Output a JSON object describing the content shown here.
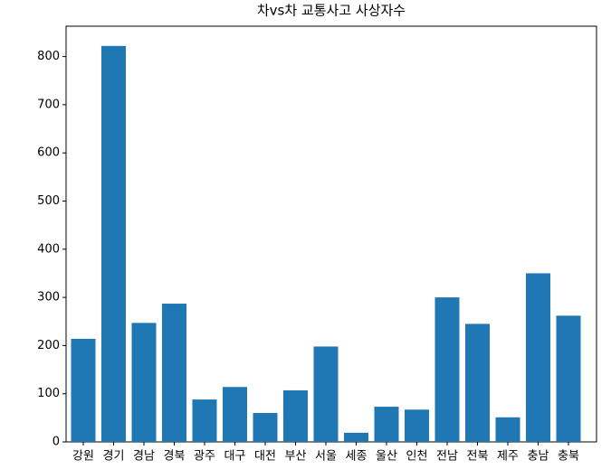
{
  "chart_data": {
    "type": "bar",
    "title": "차vs차 교통사고 사상자수",
    "categories": [
      "강원",
      "경기",
      "경남",
      "경북",
      "광주",
      "대구",
      "대전",
      "부산",
      "서울",
      "세종",
      "울산",
      "인천",
      "전남",
      "전북",
      "제주",
      "충남",
      "충북"
    ],
    "values": [
      214,
      822,
      247,
      287,
      88,
      114,
      60,
      107,
      198,
      19,
      73,
      67,
      300,
      245,
      51,
      350,
      262
    ],
    "color": "#1f77b4",
    "ylim": [
      0,
      863
    ],
    "yticks": [
      0,
      100,
      200,
      300,
      400,
      500,
      600,
      700,
      800
    ],
    "grid": false
  }
}
